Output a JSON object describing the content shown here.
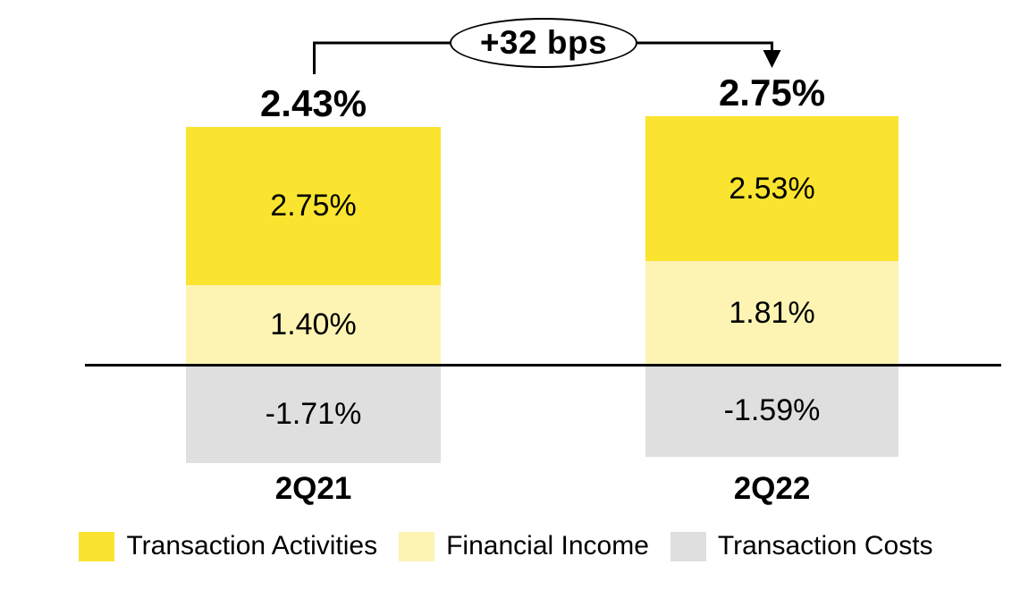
{
  "chart_data": {
    "type": "bar",
    "stacked": true,
    "title": "",
    "xlabel": "",
    "ylabel": "",
    "unit": "%",
    "legend_position": "bottom",
    "zero_line": true,
    "background_color": "#ffffff",
    "categories": [
      "2Q21",
      "2Q22"
    ],
    "series": [
      {
        "name": "Transaction Activities",
        "color": "#FAE42F",
        "values": [
          2.75,
          2.53
        ]
      },
      {
        "name": "Financial Income",
        "color": "#FDF4B3",
        "values": [
          1.4,
          1.81
        ]
      },
      {
        "name": "Transaction Costs",
        "color": "#DFDFDF",
        "values": [
          -1.71,
          -1.59
        ]
      }
    ],
    "totals": [
      "2.43%",
      "2.75%"
    ],
    "segment_labels": [
      [
        "2.75%",
        "1.40%",
        "-1.71%"
      ],
      [
        "2.53%",
        "1.81%",
        "-1.59%"
      ]
    ],
    "annotation": "+32 bps"
  }
}
